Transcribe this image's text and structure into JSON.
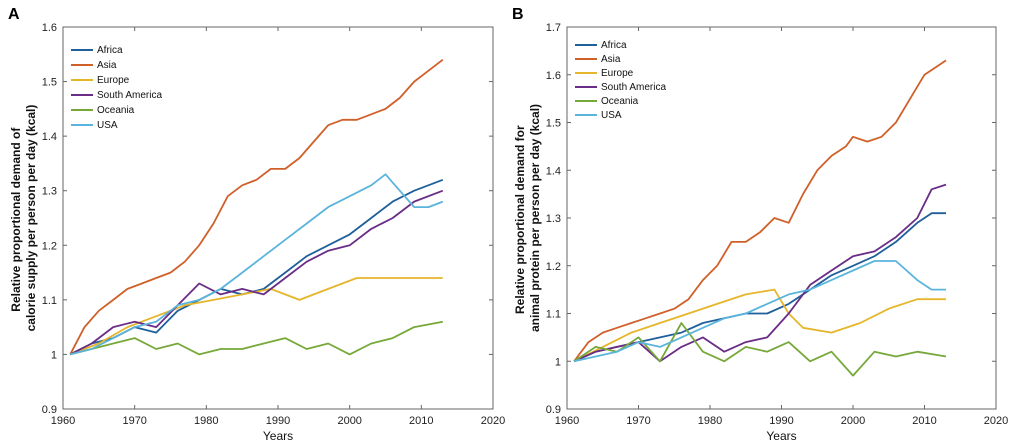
{
  "chart_data": [
    {
      "panel": "A",
      "type": "line",
      "xlabel": "Years",
      "ylabel_lines": [
        "Relative proportional demand of",
        "calorie supply per person per day (kcal)"
      ],
      "xlim": [
        1960,
        2020
      ],
      "ylim": [
        0.9,
        1.6
      ],
      "xticks": [
        1960,
        1970,
        1980,
        1990,
        2000,
        2010,
        2020
      ],
      "yticks": [
        "0.9",
        "1",
        "1.1",
        "1.2",
        "1.3",
        "1.4",
        "1.5",
        "1.6"
      ],
      "legend_position": "top-left",
      "series": [
        {
          "name": "Africa",
          "color": "#1f5f9a",
          "x": [
            1961,
            1964,
            1967,
            1970,
            1973,
            1976,
            1979,
            1982,
            1985,
            1988,
            1991,
            1994,
            1997,
            2000,
            2003,
            2006,
            2009,
            2013
          ],
          "y": [
            1.0,
            1.02,
            1.03,
            1.05,
            1.04,
            1.08,
            1.1,
            1.12,
            1.11,
            1.12,
            1.15,
            1.18,
            1.2,
            1.22,
            1.25,
            1.28,
            1.3,
            1.32
          ]
        },
        {
          "name": "Asia",
          "color": "#d06029",
          "x": [
            1961,
            1963,
            1965,
            1967,
            1969,
            1971,
            1973,
            1975,
            1977,
            1979,
            1981,
            1983,
            1985,
            1987,
            1989,
            1991,
            1993,
            1995,
            1997,
            1999,
            2001,
            2003,
            2005,
            2007,
            2009,
            2011,
            2013
          ],
          "y": [
            1.0,
            1.05,
            1.08,
            1.1,
            1.12,
            1.13,
            1.14,
            1.15,
            1.17,
            1.2,
            1.24,
            1.29,
            1.31,
            1.32,
            1.34,
            1.34,
            1.36,
            1.39,
            1.42,
            1.43,
            1.43,
            1.44,
            1.45,
            1.47,
            1.5,
            1.52,
            1.54
          ]
        },
        {
          "name": "Europe",
          "color": "#e5b52a",
          "x": [
            1961,
            1965,
            1969,
            1973,
            1977,
            1981,
            1985,
            1989,
            1993,
            1997,
            2001,
            2005,
            2009,
            2013
          ],
          "y": [
            1.0,
            1.02,
            1.05,
            1.07,
            1.09,
            1.1,
            1.11,
            1.12,
            1.1,
            1.12,
            1.14,
            1.14,
            1.14,
            1.14
          ]
        },
        {
          "name": "South America",
          "color": "#6a2c86",
          "x": [
            1961,
            1964,
            1967,
            1970,
            1973,
            1976,
            1979,
            1982,
            1985,
            1988,
            1991,
            1994,
            1997,
            2000,
            2003,
            2006,
            2009,
            2013
          ],
          "y": [
            1.0,
            1.02,
            1.05,
            1.06,
            1.05,
            1.09,
            1.13,
            1.11,
            1.12,
            1.11,
            1.14,
            1.17,
            1.19,
            1.2,
            1.23,
            1.25,
            1.28,
            1.3
          ]
        },
        {
          "name": "Oceania",
          "color": "#76a83a",
          "x": [
            1961,
            1964,
            1967,
            1970,
            1973,
            1976,
            1979,
            1982,
            1985,
            1988,
            1991,
            1994,
            1997,
            2000,
            2003,
            2006,
            2009,
            2013
          ],
          "y": [
            1.0,
            1.01,
            1.02,
            1.03,
            1.01,
            1.02,
            1.0,
            1.01,
            1.01,
            1.02,
            1.03,
            1.01,
            1.02,
            1.0,
            1.02,
            1.03,
            1.05,
            1.06
          ]
        },
        {
          "name": "USA",
          "color": "#5ab4dc",
          "x": [
            1961,
            1964,
            1967,
            1970,
            1973,
            1976,
            1979,
            1982,
            1985,
            1988,
            1991,
            1994,
            1997,
            2000,
            2003,
            2005,
            2007,
            2009,
            2011,
            2013
          ],
          "y": [
            1.0,
            1.01,
            1.03,
            1.05,
            1.06,
            1.09,
            1.1,
            1.12,
            1.15,
            1.18,
            1.21,
            1.24,
            1.27,
            1.29,
            1.31,
            1.33,
            1.3,
            1.27,
            1.27,
            1.28
          ]
        }
      ]
    },
    {
      "panel": "B",
      "type": "line",
      "xlabel": "Years",
      "ylabel_lines": [
        "Relative proportional demand for",
        "animal protein per person per day (kcal)"
      ],
      "xlim": [
        1960,
        2020
      ],
      "ylim": [
        0.9,
        1.7
      ],
      "xticks": [
        1960,
        1970,
        1980,
        1990,
        2000,
        2010,
        2020
      ],
      "yticks": [
        "0.9",
        "1",
        "1.1",
        "1.2",
        "1.3",
        "1.4",
        "1.5",
        "1.6",
        "1.7"
      ],
      "legend_position": "top-left",
      "series": [
        {
          "name": "Africa",
          "color": "#1f5f9a",
          "x": [
            1961,
            1964,
            1967,
            1970,
            1973,
            1976,
            1979,
            1982,
            1985,
            1988,
            1991,
            1994,
            1997,
            2000,
            2003,
            2006,
            2009,
            2011,
            2013
          ],
          "y": [
            1.0,
            1.02,
            1.03,
            1.04,
            1.05,
            1.06,
            1.08,
            1.09,
            1.1,
            1.1,
            1.12,
            1.15,
            1.18,
            1.2,
            1.22,
            1.25,
            1.29,
            1.31,
            1.31
          ]
        },
        {
          "name": "Asia",
          "color": "#d06029",
          "x": [
            1961,
            1963,
            1965,
            1967,
            1969,
            1971,
            1973,
            1975,
            1977,
            1979,
            1981,
            1983,
            1985,
            1987,
            1989,
            1991,
            1993,
            1995,
            1997,
            1999,
            2000,
            2002,
            2004,
            2006,
            2008,
            2010,
            2012,
            2013
          ],
          "y": [
            1.0,
            1.04,
            1.06,
            1.07,
            1.08,
            1.09,
            1.1,
            1.11,
            1.13,
            1.17,
            1.2,
            1.25,
            1.25,
            1.27,
            1.3,
            1.29,
            1.35,
            1.4,
            1.43,
            1.45,
            1.47,
            1.46,
            1.47,
            1.5,
            1.55,
            1.6,
            1.62,
            1.63
          ]
        },
        {
          "name": "Europe",
          "color": "#e5b52a",
          "x": [
            1961,
            1965,
            1969,
            1973,
            1977,
            1981,
            1985,
            1989,
            1991,
            1993,
            1997,
            2001,
            2005,
            2009,
            2013
          ],
          "y": [
            1.0,
            1.03,
            1.06,
            1.08,
            1.1,
            1.12,
            1.14,
            1.15,
            1.1,
            1.07,
            1.06,
            1.08,
            1.11,
            1.13,
            1.13
          ]
        },
        {
          "name": "South America",
          "color": "#6a2c86",
          "x": [
            1961,
            1964,
            1967,
            1970,
            1973,
            1976,
            1979,
            1982,
            1985,
            1988,
            1991,
            1994,
            1997,
            2000,
            2003,
            2006,
            2009,
            2011,
            2013
          ],
          "y": [
            1.0,
            1.02,
            1.03,
            1.04,
            1.0,
            1.03,
            1.05,
            1.02,
            1.04,
            1.05,
            1.1,
            1.16,
            1.19,
            1.22,
            1.23,
            1.26,
            1.3,
            1.36,
            1.37
          ]
        },
        {
          "name": "Oceania",
          "color": "#76a83a",
          "x": [
            1961,
            1964,
            1967,
            1970,
            1973,
            1976,
            1979,
            1982,
            1985,
            1988,
            1991,
            1994,
            1997,
            2000,
            2003,
            2006,
            2009,
            2013
          ],
          "y": [
            1.0,
            1.03,
            1.02,
            1.05,
            1.0,
            1.08,
            1.02,
            1.0,
            1.03,
            1.02,
            1.04,
            1.0,
            1.02,
            0.97,
            1.02,
            1.01,
            1.02,
            1.01
          ]
        },
        {
          "name": "USA",
          "color": "#5ab4dc",
          "x": [
            1961,
            1964,
            1967,
            1970,
            1973,
            1976,
            1979,
            1982,
            1985,
            1988,
            1991,
            1994,
            1997,
            2000,
            2003,
            2006,
            2009,
            2011,
            2013
          ],
          "y": [
            1.0,
            1.01,
            1.02,
            1.04,
            1.03,
            1.05,
            1.07,
            1.09,
            1.1,
            1.12,
            1.14,
            1.15,
            1.17,
            1.19,
            1.21,
            1.21,
            1.17,
            1.15,
            1.15
          ]
        }
      ]
    }
  ]
}
